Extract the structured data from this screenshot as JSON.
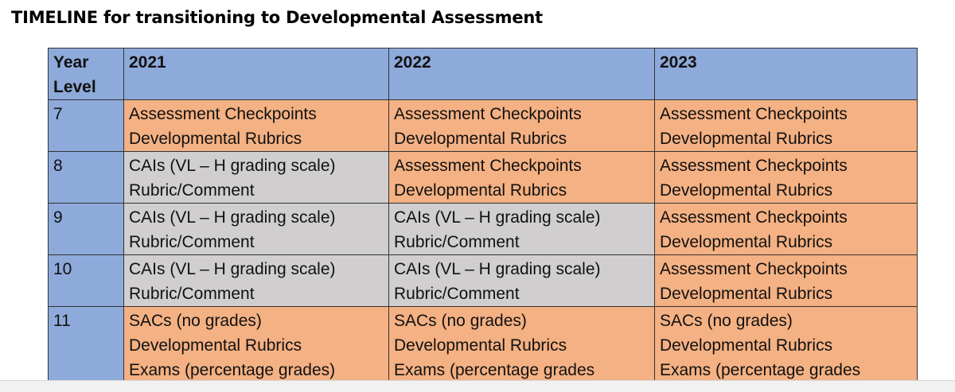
{
  "title": "TIMELINE for transitioning to Developmental Assessment",
  "table": {
    "header": {
      "year_level": [
        "Year",
        "Level"
      ],
      "years": [
        "2021",
        "2022",
        "2023"
      ]
    },
    "rows": [
      {
        "level": "7",
        "cells": [
          {
            "style": "orange",
            "lines": [
              "Assessment Checkpoints",
              "Developmental Rubrics"
            ]
          },
          {
            "style": "orange",
            "lines": [
              "Assessment Checkpoints",
              "Developmental Rubrics"
            ]
          },
          {
            "style": "orange",
            "lines": [
              "Assessment Checkpoints",
              "Developmental Rubrics"
            ]
          }
        ]
      },
      {
        "level": "8",
        "cells": [
          {
            "style": "grey",
            "lines": [
              "CAIs (VL – H grading scale)",
              "Rubric/Comment"
            ]
          },
          {
            "style": "orange",
            "lines": [
              "Assessment Checkpoints",
              "Developmental Rubrics"
            ]
          },
          {
            "style": "orange",
            "lines": [
              "Assessment Checkpoints",
              "Developmental Rubrics"
            ]
          }
        ]
      },
      {
        "level": "9",
        "cells": [
          {
            "style": "grey",
            "lines": [
              "CAIs (VL – H grading scale)",
              "Rubric/Comment"
            ]
          },
          {
            "style": "grey",
            "lines": [
              "CAIs (VL – H grading scale)",
              "Rubric/Comment"
            ]
          },
          {
            "style": "orange",
            "lines": [
              "Assessment Checkpoints",
              "Developmental Rubrics"
            ]
          }
        ]
      },
      {
        "level": "10",
        "cells": [
          {
            "style": "grey",
            "lines": [
              "CAIs (VL – H grading scale)",
              "Rubric/Comment"
            ]
          },
          {
            "style": "grey",
            "lines": [
              "CAIs (VL – H grading scale)",
              "Rubric/Comment"
            ]
          },
          {
            "style": "orange",
            "lines": [
              "Assessment Checkpoints",
              "Developmental Rubrics"
            ]
          }
        ]
      },
      {
        "level": "11",
        "cells": [
          {
            "style": "orange",
            "lines": [
              "SACs (no grades)",
              "Developmental Rubrics",
              "Exams (percentage grades)"
            ]
          },
          {
            "style": "orange",
            "lines": [
              "SACs (no grades)",
              "Developmental Rubrics",
              "Exams (percentage grades"
            ]
          },
          {
            "style": "orange",
            "lines": [
              "SACs (no grades)",
              "Developmental Rubrics",
              "Exams (percentage grades"
            ]
          }
        ]
      }
    ]
  },
  "colors": {
    "header_blue": "#8eaadb",
    "orange": "#f4b183",
    "grey": "#d0cece"
  }
}
